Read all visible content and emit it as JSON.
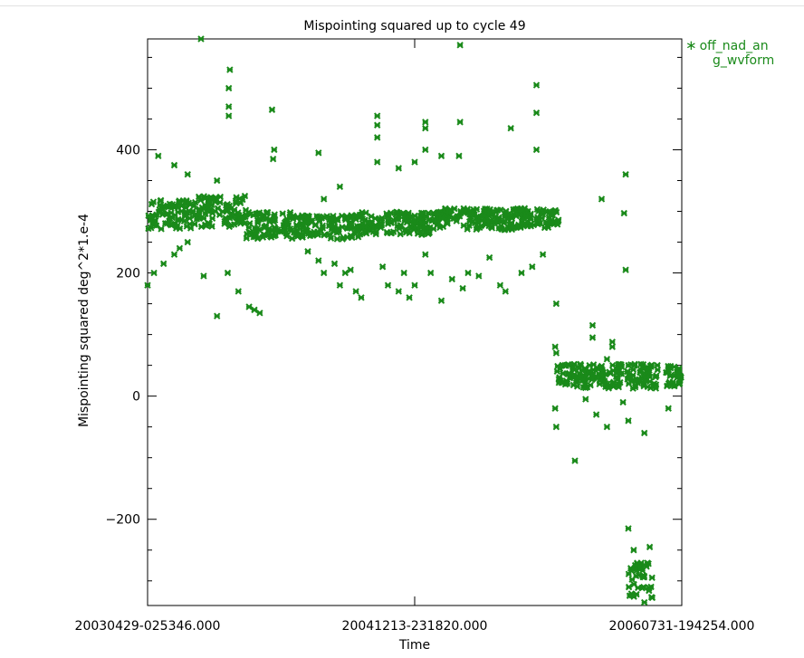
{
  "chart_data": {
    "type": "scatter",
    "title": "Mispointing squared up to cycle 49",
    "xlabel": "Time",
    "ylabel": "Mispointing squared deg^2*1.e-4",
    "x_tick_labels": [
      "20030429-025346.000",
      "20041213-231820.000",
      "20060731-194254.000"
    ],
    "x_tick_values": [
      0,
      0.5,
      1
    ],
    "xlim": [
      0,
      1
    ],
    "ylim": [
      -340,
      580
    ],
    "y_ticks": [
      -200,
      0,
      200,
      400
    ],
    "y_tick_labels": [
      "−200",
      "0",
      "200",
      "400"
    ],
    "grid": false,
    "legend": {
      "position": "right-outside-top",
      "text_line1": "off_nad_an",
      "text_line2": "g_wvform",
      "marker": "∗"
    },
    "marker_color": "#1a8a1a",
    "series": [
      {
        "name": "off_nad_ang_wvform",
        "bands": [
          {
            "x0": 0.0,
            "x1": 0.09,
            "y0": 270,
            "y1": 320
          },
          {
            "x0": 0.09,
            "x1": 0.185,
            "y0": 275,
            "y1": 325
          },
          {
            "x0": 0.185,
            "x1": 0.28,
            "y0": 255,
            "y1": 300
          },
          {
            "x0": 0.28,
            "x1": 0.4,
            "y0": 255,
            "y1": 295
          },
          {
            "x0": 0.4,
            "x1": 0.55,
            "y0": 262,
            "y1": 300
          },
          {
            "x0": 0.55,
            "x1": 0.69,
            "y0": 270,
            "y1": 305
          },
          {
            "x0": 0.69,
            "x1": 0.77,
            "y0": 273,
            "y1": 305
          },
          {
            "x0": 0.765,
            "x1": 0.955,
            "y0": 12,
            "y1": 52
          },
          {
            "x0": 0.97,
            "x1": 1.0,
            "y0": 15,
            "y1": 50
          },
          {
            "x0": 0.9,
            "x1": 0.945,
            "y0": -330,
            "y1": -270
          }
        ],
        "points": [
          [
            0.1,
            580
          ],
          [
            0.154,
            530
          ],
          [
            0.152,
            500
          ],
          [
            0.152,
            470
          ],
          [
            0.152,
            455
          ],
          [
            0.233,
            465
          ],
          [
            0.237,
            400
          ],
          [
            0.235,
            385
          ],
          [
            0.32,
            395
          ],
          [
            0.43,
            455
          ],
          [
            0.43,
            440
          ],
          [
            0.43,
            420
          ],
          [
            0.43,
            380
          ],
          [
            0.52,
            445
          ],
          [
            0.52,
            435
          ],
          [
            0.52,
            400
          ],
          [
            0.585,
            570
          ],
          [
            0.585,
            445
          ],
          [
            0.583,
            390
          ],
          [
            0.68,
            435
          ],
          [
            0.728,
            505
          ],
          [
            0.728,
            460
          ],
          [
            0.728,
            400
          ],
          [
            0.85,
            320
          ],
          [
            0.895,
            360
          ],
          [
            0.892,
            297
          ],
          [
            0.895,
            205
          ],
          [
            0.02,
            390
          ],
          [
            0.05,
            375
          ],
          [
            0.075,
            360
          ],
          [
            0.13,
            350
          ],
          [
            0.33,
            320
          ],
          [
            0.36,
            340
          ],
          [
            0.47,
            370
          ],
          [
            0.5,
            380
          ],
          [
            0.55,
            390
          ],
          [
            0.0,
            180
          ],
          [
            0.012,
            200
          ],
          [
            0.03,
            215
          ],
          [
            0.05,
            230
          ],
          [
            0.06,
            240
          ],
          [
            0.075,
            250
          ],
          [
            0.105,
            195
          ],
          [
            0.13,
            130
          ],
          [
            0.15,
            200
          ],
          [
            0.17,
            170
          ],
          [
            0.19,
            145
          ],
          [
            0.2,
            140
          ],
          [
            0.21,
            135
          ],
          [
            0.3,
            235
          ],
          [
            0.32,
            220
          ],
          [
            0.33,
            200
          ],
          [
            0.35,
            215
          ],
          [
            0.36,
            180
          ],
          [
            0.37,
            200
          ],
          [
            0.38,
            205
          ],
          [
            0.39,
            170
          ],
          [
            0.4,
            160
          ],
          [
            0.44,
            210
          ],
          [
            0.45,
            180
          ],
          [
            0.47,
            170
          ],
          [
            0.48,
            200
          ],
          [
            0.49,
            160
          ],
          [
            0.5,
            180
          ],
          [
            0.52,
            230
          ],
          [
            0.53,
            200
          ],
          [
            0.55,
            155
          ],
          [
            0.57,
            190
          ],
          [
            0.59,
            175
          ],
          [
            0.6,
            200
          ],
          [
            0.62,
            195
          ],
          [
            0.64,
            225
          ],
          [
            0.66,
            180
          ],
          [
            0.67,
            170
          ],
          [
            0.7,
            200
          ],
          [
            0.72,
            210
          ],
          [
            0.74,
            230
          ],
          [
            0.765,
            150
          ],
          [
            0.763,
            80
          ],
          [
            0.765,
            70
          ],
          [
            0.763,
            -20
          ],
          [
            0.765,
            -50
          ],
          [
            0.8,
            -105
          ],
          [
            0.833,
            115
          ],
          [
            0.833,
            95
          ],
          [
            0.86,
            60
          ],
          [
            0.87,
            88
          ],
          [
            0.87,
            80
          ],
          [
            0.89,
            -10
          ],
          [
            0.82,
            -5
          ],
          [
            0.84,
            -30
          ],
          [
            0.86,
            -50
          ],
          [
            0.9,
            -40
          ],
          [
            0.93,
            -60
          ],
          [
            0.975,
            -20
          ],
          [
            0.995,
            45
          ],
          [
            0.9,
            -215
          ],
          [
            0.91,
            -250
          ],
          [
            0.94,
            -245
          ],
          [
            0.93,
            -335
          ]
        ]
      }
    ]
  }
}
